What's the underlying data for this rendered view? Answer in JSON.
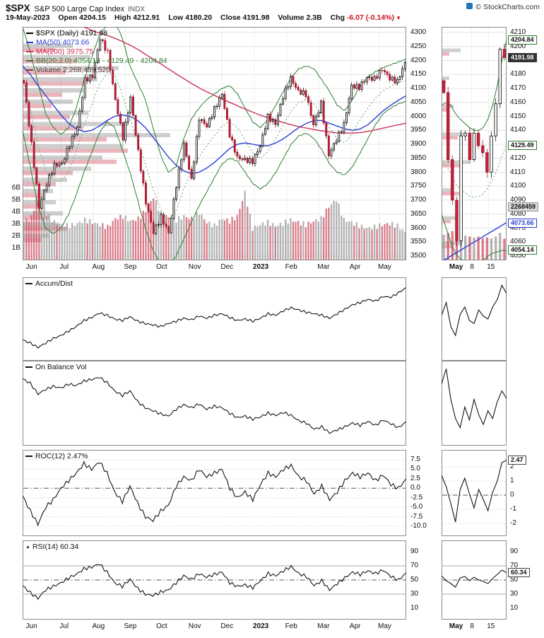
{
  "header": {
    "symbol": "$SPX",
    "name": "S&P 500 Large Cap Index",
    "exchange": "INDX",
    "copyright": "© StockCharts.com",
    "date": "19-May-2023",
    "quote": [
      {
        "label": "Open",
        "value": "4204.15"
      },
      {
        "label": "High",
        "value": "4212.91"
      },
      {
        "label": "Low",
        "value": "4180.20"
      },
      {
        "label": "Close",
        "value": "4191.98"
      },
      {
        "label": "Volume",
        "value": "2.3B"
      },
      {
        "label": "Chg",
        "value": "-6.07 (-0.14%)",
        "negative": true
      }
    ]
  },
  "legend": {
    "spx": "$SPX (Daily) 4191.98",
    "ma50": "MA(50) 4073.66",
    "ma200": "MA(200) 3975.75",
    "bb": "BB(20,2.0) 4054.14 - 4129.49 - 4204.84",
    "volume": "Volume 2,268,459,520"
  },
  "colors": {
    "candle_up_fill": "#ffffff",
    "candle_up_stroke": "#000000",
    "candle_down_fill": "#cc2239",
    "candle_down_stroke": "#8f1128",
    "ma50": "#2a3fd4",
    "ma200": "#cc3355",
    "bollinger": "#2e7d32",
    "bollinger_mid": "#6fae6f",
    "volume_up": "#999999",
    "volume_down": "#cd5063",
    "indicator_line": "#151515",
    "negative": "#cc1122"
  },
  "chart_data": [
    {
      "id": "price",
      "type": "candlestick",
      "title": "$SPX (Daily)",
      "last_close": 4191.98,
      "y_axis": {
        "min": 3500,
        "max": 4300,
        "step": 50
      },
      "volume_axis_labels": [
        "1B",
        "2B",
        "3B",
        "4B",
        "5B",
        "6B"
      ],
      "x_ticks": [
        {
          "label": "Jun",
          "pos": 0.012
        },
        {
          "label": "Jul",
          "pos": 0.1
        },
        {
          "label": "Aug",
          "pos": 0.185
        },
        {
          "label": "Sep",
          "pos": 0.268
        },
        {
          "label": "Oct",
          "pos": 0.352
        },
        {
          "label": "Nov",
          "pos": 0.436
        },
        {
          "label": "Dec",
          "pos": 0.52
        },
        {
          "label": "2023",
          "pos": 0.604,
          "bold": true
        },
        {
          "label": "Feb",
          "pos": 0.688
        },
        {
          "label": "Mar",
          "pos": 0.772
        },
        {
          "label": "Apr",
          "pos": 0.856
        },
        {
          "label": "May",
          "pos": 0.93
        }
      ],
      "close": [
        4120,
        3900,
        3675,
        3760,
        3825,
        3830,
        3900,
        3960,
        4130,
        4145,
        4280,
        4228,
        4058,
        3924,
        4067,
        3873,
        3693,
        3585,
        3640,
        3583,
        3753,
        3901,
        3771,
        3993,
        3965,
        4026,
        4080,
        3934,
        3852,
        3845,
        3839,
        3895,
        3999,
        3973,
        4071,
        4136,
        4090,
        4079,
        3970,
        4046,
        3862,
        3917,
        3971,
        4109,
        4105,
        4138,
        4134,
        4169,
        4136,
        4124,
        4192
      ],
      "ma50": [
        4180,
        4150,
        4110,
        4075,
        4040,
        4005,
        3975,
        3955,
        3945,
        3950,
        3965,
        3985,
        4000,
        4005,
        4000,
        3985,
        3960,
        3925,
        3890,
        3855,
        3825,
        3805,
        3795,
        3800,
        3815,
        3835,
        3860,
        3885,
        3900,
        3905,
        3900,
        3895,
        3895,
        3905,
        3920,
        3940,
        3960,
        3975,
        3985,
        3985,
        3975,
        3965,
        3955,
        3950,
        3955,
        3970,
        3995,
        4020,
        4040,
        4058,
        4074
      ],
      "ma200": [
        4440,
        4425,
        4410,
        4395,
        4380,
        4365,
        4350,
        4335,
        4320,
        4308,
        4298,
        4290,
        4280,
        4268,
        4255,
        4240,
        4222,
        4205,
        4188,
        4170,
        4152,
        4135,
        4118,
        4102,
        4088,
        4075,
        4062,
        4050,
        4038,
        4026,
        4015,
        4004,
        3995,
        3986,
        3978,
        3970,
        3963,
        3958,
        3953,
        3948,
        3944,
        3941,
        3940,
        3940,
        3942,
        3946,
        3952,
        3958,
        3964,
        3970,
        3976
      ],
      "bb_upper": [
        4320,
        4230,
        4120,
        4010,
        3960,
        3935,
        3960,
        4030,
        4130,
        4210,
        4290,
        4330,
        4340,
        4280,
        4180,
        4120,
        4060,
        3960,
        3860,
        3800,
        3820,
        3920,
        3990,
        4030,
        4060,
        4080,
        4100,
        4110,
        4080,
        4030,
        3980,
        3960,
        3990,
        4040,
        4090,
        4140,
        4170,
        4180,
        4170,
        4130,
        4090,
        4040,
        4020,
        4060,
        4110,
        4140,
        4160,
        4175,
        4185,
        4195,
        4205
      ],
      "bb_lower": [
        3950,
        3820,
        3680,
        3600,
        3580,
        3600,
        3650,
        3720,
        3800,
        3870,
        3940,
        3980,
        3960,
        3880,
        3800,
        3700,
        3600,
        3520,
        3470,
        3460,
        3500,
        3560,
        3620,
        3680,
        3730,
        3780,
        3830,
        3850,
        3840,
        3800,
        3760,
        3740,
        3760,
        3800,
        3850,
        3900,
        3930,
        3940,
        3920,
        3880,
        3830,
        3800,
        3790,
        3820,
        3870,
        3920,
        3970,
        4010,
        4030,
        4045,
        4054
      ],
      "volume_billions": [
        3.2,
        3.5,
        5.9,
        3.8,
        3.1,
        2.9,
        2.8,
        3.0,
        3.3,
        3.1,
        2.9,
        2.7,
        3.4,
        3.6,
        3.2,
        3.4,
        4.1,
        5.2,
        3.8,
        3.5,
        3.3,
        3.6,
        3.4,
        3.9,
        3.1,
        2.8,
        3.4,
        3.2,
        3.6,
        5.6,
        2.6,
        2.9,
        3.1,
        2.8,
        3.0,
        3.3,
        3.1,
        2.9,
        3.2,
        3.4,
        4.4,
        5.0,
        3.3,
        3.1,
        2.8,
        2.6,
        2.7,
        2.9,
        3.0,
        2.8,
        2.3
      ],
      "volume_by_price": [
        {
          "price": 4245,
          "gray": 70,
          "red": 45
        },
        {
          "price": 4205,
          "gray": 95,
          "red": 75
        },
        {
          "price": 4165,
          "gray": 135,
          "red": 60
        },
        {
          "price": 4125,
          "gray": 105,
          "red": 88
        },
        {
          "price": 4085,
          "gray": 85,
          "red": 55
        },
        {
          "price": 4045,
          "gray": 70,
          "red": 40
        },
        {
          "price": 4005,
          "gray": 92,
          "red": 66
        },
        {
          "price": 3965,
          "gray": 148,
          "red": 84
        },
        {
          "price": 3925,
          "gray": 208,
          "red": 118
        },
        {
          "price": 3885,
          "gray": 142,
          "red": 148
        },
        {
          "price": 3845,
          "gray": 112,
          "red": 132
        },
        {
          "price": 3805,
          "gray": 96,
          "red": 70
        },
        {
          "price": 3765,
          "gray": 62,
          "red": 46
        },
        {
          "price": 3725,
          "gray": 42,
          "red": 30
        },
        {
          "price": 3685,
          "gray": 46,
          "red": 26
        },
        {
          "price": 3645,
          "gray": 56,
          "red": 36
        },
        {
          "price": 3605,
          "gray": 50,
          "red": 62
        },
        {
          "price": 3565,
          "gray": 36,
          "red": 26
        }
      ]
    },
    {
      "id": "price_zoom",
      "type": "candlestick",
      "y_axis": {
        "min": 4050,
        "max": 4210,
        "step": 10
      },
      "x_ticks": [
        {
          "label": "May",
          "pos": 0.14,
          "bold": true
        },
        {
          "label": "8",
          "pos": 0.46
        },
        {
          "label": "15",
          "pos": 0.72
        }
      ],
      "close": [
        4167,
        4119,
        4090,
        4061,
        4136,
        4138,
        4119,
        4138,
        4129,
        4124,
        4110,
        4136,
        4159,
        4198,
        4192
      ],
      "ma50": [
        4046,
        4048,
        4050,
        4052,
        4054,
        4056,
        4058,
        4060,
        4062,
        4064,
        4066,
        4068,
        4070,
        4072,
        4074
      ],
      "bb_upper": [
        4158,
        4160,
        4158,
        4152,
        4148,
        4145,
        4142,
        4140,
        4140,
        4142,
        4148,
        4158,
        4172,
        4190,
        4205
      ],
      "bb_lower": [
        4080,
        4070,
        4060,
        4052,
        4048,
        4046,
        4044,
        4044,
        4045,
        4047,
        4050,
        4052,
        4053,
        4054,
        4054
      ],
      "volume_billions": [
        2.7,
        2.9,
        3.1,
        3.3,
        2.8,
        2.6,
        2.5,
        2.4,
        2.5,
        2.3,
        2.4,
        2.3,
        2.5,
        2.9,
        2.27
      ],
      "volume_by_price": [
        {
          "price": 4196,
          "gray": 26,
          "red": 10
        },
        {
          "price": 4176,
          "gray": 10,
          "red": 5
        },
        {
          "price": 4156,
          "gray": 16,
          "red": 8
        },
        {
          "price": 4136,
          "gray": 30,
          "red": 22
        },
        {
          "price": 4116,
          "gray": 38,
          "red": 26
        },
        {
          "price": 4096,
          "gray": 16,
          "red": 24
        },
        {
          "price": 4076,
          "gray": 20,
          "red": 12
        },
        {
          "price": 4058,
          "gray": 26,
          "red": 14
        }
      ],
      "callouts": [
        {
          "text": "4204.84",
          "value": 4204.84,
          "style": "green"
        },
        {
          "text": "4191.98",
          "value": 4191.98,
          "style": "dark"
        },
        {
          "text": "4129.49",
          "value": 4129.49,
          "style": "green"
        },
        {
          "text": "2268459",
          "value": 4085,
          "style": "gray"
        },
        {
          "text": "4073.66",
          "value": 4073.66,
          "style": "blue"
        },
        {
          "text": "4054.14",
          "value": 4054.14,
          "style": "green"
        }
      ]
    },
    {
      "id": "accdist",
      "type": "line",
      "label": "Accum/Dist",
      "y_range": [
        0,
        100
      ],
      "values": [
        22,
        18,
        12,
        18,
        24,
        28,
        34,
        40,
        48,
        52,
        58,
        55,
        50,
        48,
        53,
        47,
        44,
        42,
        40,
        44,
        47,
        51,
        49,
        54,
        51,
        55,
        57,
        52,
        48,
        50,
        47,
        51,
        57,
        55,
        61,
        65,
        62,
        59,
        57,
        55,
        51,
        57,
        63,
        69,
        72,
        76,
        74,
        80,
        79,
        85,
        92
      ],
      "mini": [
        55,
        72,
        40,
        28,
        56,
        66,
        48,
        44,
        62,
        54,
        50,
        66,
        76,
        95,
        84
      ]
    },
    {
      "id": "obv",
      "type": "line",
      "label": "On Balance Vol",
      "y_range": [
        0,
        100
      ],
      "values": [
        82,
        76,
        62,
        68,
        72,
        70,
        75,
        73,
        79,
        81,
        84,
        77,
        66,
        60,
        66,
        52,
        44,
        40,
        36,
        33,
        42,
        48,
        44,
        49,
        42,
        46,
        44,
        37,
        31,
        33,
        29,
        32,
        37,
        34,
        38,
        34,
        27,
        24,
        16,
        19,
        11,
        15,
        19,
        24,
        21,
        26,
        21,
        28,
        23,
        18,
        26
      ],
      "mini": [
        75,
        95,
        55,
        30,
        18,
        45,
        28,
        55,
        35,
        22,
        40,
        30,
        52,
        66,
        56
      ]
    },
    {
      "id": "roc",
      "type": "line",
      "label": "ROC(12) 2.47%",
      "y_range": [
        -11.5,
        9
      ],
      "y_ticks": [
        7.5,
        5,
        2.5,
        0,
        -2.5,
        -5,
        -7.5,
        -10
      ],
      "mini_range": [
        -2.6,
        2.9
      ],
      "mini_ticks": [
        2,
        1,
        0,
        -1,
        -2
      ],
      "zero_dashdot": true,
      "callout": {
        "text": "2.47",
        "value": 2.47
      },
      "values": [
        -2,
        -6,
        -9.5,
        -5,
        -3,
        0,
        2,
        4,
        6.5,
        5,
        7,
        4,
        -1,
        -3.5,
        0.5,
        -4,
        -7.5,
        -8.5,
        -6,
        -4.5,
        0.5,
        3,
        2,
        5,
        3,
        4,
        5,
        0,
        -2.5,
        -1,
        -3,
        1,
        4,
        3,
        5,
        6,
        3,
        2,
        -1.5,
        0.5,
        -3,
        -1,
        2,
        4,
        3,
        4,
        2,
        3.5,
        1,
        0,
        2.47
      ],
      "mini": [
        1.4,
        0.6,
        -0.6,
        -1.9,
        0.4,
        1.2,
        0.1,
        -0.9,
        0.4,
        -0.3,
        -1.1,
        0.2,
        1.0,
        2.3,
        2.47
      ]
    },
    {
      "id": "rsi",
      "type": "line",
      "label": "RSI(14) 60.34",
      "y_range": [
        0,
        100
      ],
      "y_ticks": [
        90,
        70,
        50,
        30,
        10
      ],
      "mini_ticks": [
        90,
        70,
        50,
        30,
        10
      ],
      "ref_solid": [
        70,
        30
      ],
      "ref_dashdot": [
        50
      ],
      "callout": {
        "text": "60.34",
        "value": 60.34
      },
      "values": [
        42,
        32,
        24,
        36,
        41,
        46,
        53,
        58,
        66,
        68,
        73,
        61,
        46,
        41,
        51,
        38,
        30,
        28,
        33,
        36,
        46,
        56,
        51,
        59,
        54,
        58,
        61,
        46,
        41,
        43,
        39,
        49,
        59,
        56,
        63,
        69,
        59,
        55,
        42,
        49,
        36,
        45,
        53,
        61,
        58,
        63,
        59,
        64,
        55,
        50,
        60.34
      ],
      "mini": [
        56,
        49,
        45,
        40,
        53,
        55,
        49,
        54,
        50,
        48,
        45,
        52,
        58,
        64,
        60.34
      ]
    }
  ]
}
